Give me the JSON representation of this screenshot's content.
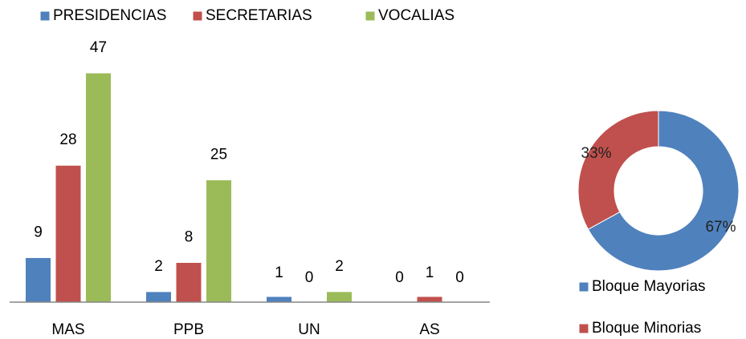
{
  "chart_data": [
    {
      "type": "bar",
      "categories": [
        "MAS",
        "PPB",
        "UN",
        "AS"
      ],
      "series": [
        {
          "name": "PRESIDENCIAS",
          "color": "#4f81bd",
          "values": [
            9,
            2,
            1,
            0
          ]
        },
        {
          "name": "SECRETARIAS",
          "color": "#c0504d",
          "values": [
            28,
            8,
            0,
            1
          ]
        },
        {
          "name": "VOCALIAS",
          "color": "#9bbb59",
          "values": [
            47,
            25,
            2,
            0
          ]
        }
      ],
      "legend": "top"
    },
    {
      "type": "donut",
      "categories": [
        "Bloque Mayorias",
        "Bloque Minorias"
      ],
      "values": [
        67,
        33
      ],
      "value_labels": [
        "67%",
        "33%"
      ],
      "colors": [
        "#4f81bd",
        "#c0504d"
      ],
      "legend": "bottom"
    }
  ]
}
